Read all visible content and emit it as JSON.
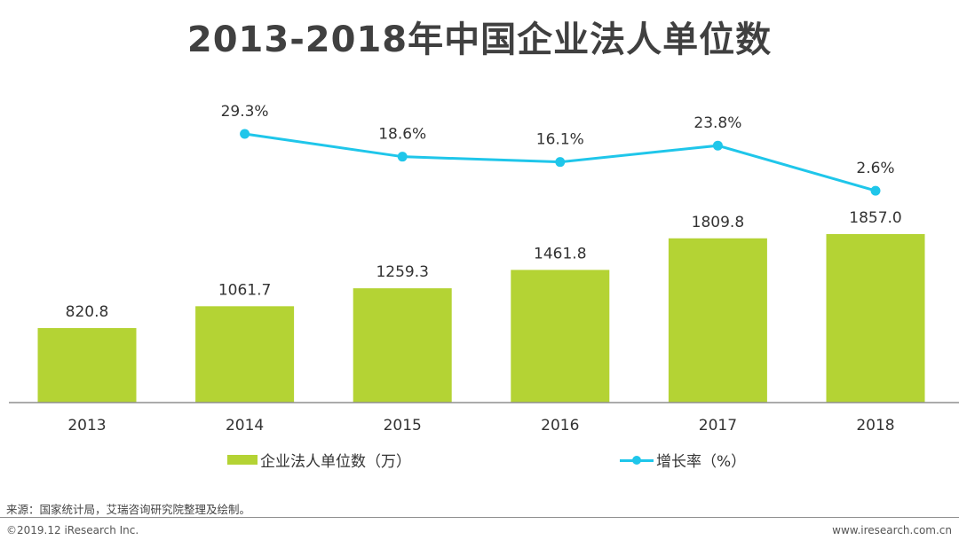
{
  "title": "2013-2018年中国企业法人单位数",
  "chart_data": {
    "type": "bar+line",
    "categories": [
      "2013",
      "2014",
      "2015",
      "2016",
      "2017",
      "2018"
    ],
    "series": [
      {
        "name": "企业法人单位数（万）",
        "type": "bar",
        "color": "#b4d334",
        "values": [
          820.8,
          1061.7,
          1259.3,
          1461.8,
          1809.8,
          1857.0
        ],
        "labels": [
          "820.8",
          "1061.7",
          "1259.3",
          "1461.8",
          "1809.8",
          "1857.0"
        ]
      },
      {
        "name": "增长率（%）",
        "type": "line",
        "color": "#1fc6ea",
        "values": [
          null,
          29.3,
          18.6,
          16.1,
          23.8,
          2.6
        ],
        "labels": [
          "",
          "29.3%",
          "18.6%",
          "16.1%",
          "23.8%",
          "2.6%"
        ]
      }
    ],
    "legend_position": "bottom"
  },
  "legend": {
    "bar_label": "企业法人单位数（万）",
    "line_label": "增长率（%）"
  },
  "colors": {
    "bar": "#b4d334",
    "line": "#1fc6ea",
    "axis": "#8f8f8f"
  },
  "source": "来源：国家统计局，艾瑞咨询研究院整理及绘制。",
  "footer": {
    "copyright": "©2019.12 iResearch Inc.",
    "website": "www.iresearch.com.cn"
  }
}
